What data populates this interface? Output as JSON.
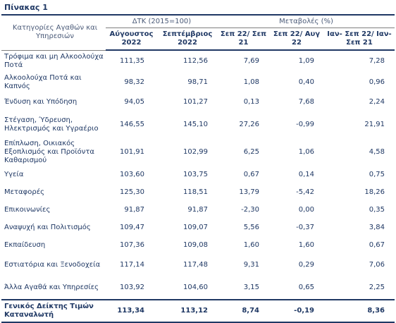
{
  "title": "Πίνακας 1",
  "headers": {
    "category": "Κατηγορίες Αγαθών και Υπηρεσιών",
    "index_group": "ΔΤΚ (2015=100)",
    "change_group": "Μεταβολές (%)",
    "col1": "Αύγουστος 2022",
    "col2": "Σεπτέμβριος 2022",
    "col3": "Σεπ 22/ Σεπ 21",
    "col4": "Σεπ 22/ Αυγ 22",
    "col5": "Ιαν- Σεπ 22/ Ιαν- Σεπ 21"
  },
  "rows": [
    {
      "label": "Τρόφιμα και μη Αλκοολούχα Ποτά",
      "v1": "111,35",
      "v2": "112,56",
      "v3": "7,69",
      "v4": "1,09",
      "v5": "7,28"
    },
    {
      "label": "Αλκοολούχα Ποτά και Καπνός",
      "v1": "98,32",
      "v2": "98,71",
      "v3": "1,08",
      "v4": "0,40",
      "v5": "0,96"
    },
    {
      "label": "Ένδυση και Υπόδηση",
      "v1": "94,05",
      "v2": "101,27",
      "v3": "0,13",
      "v4": "7,68",
      "v5": "2,24"
    },
    {
      "label": "Στέγαση, Ύδρευση, Ηλεκτρισμός και Υγραέριο",
      "v1": "146,55",
      "v2": "145,10",
      "v3": "27,26",
      "v4": "-0,99",
      "v5": "21,91"
    },
    {
      "label": "Επίπλωση, Οικιακός Εξοπλισμός και Προϊόντα Καθαρισμού",
      "v1": "101,91",
      "v2": "102,99",
      "v3": "6,25",
      "v4": "1,06",
      "v5": "4,58"
    },
    {
      "label": "Υγεία",
      "v1": "103,60",
      "v2": "103,75",
      "v3": "0,67",
      "v4": "0,14",
      "v5": "0,75"
    },
    {
      "label": "Μεταφορές",
      "v1": "125,30",
      "v2": "118,51",
      "v3": "13,79",
      "v4": "-5,42",
      "v5": "18,26"
    },
    {
      "label": "Επικοινωνίες",
      "v1": "91,87",
      "v2": "91,87",
      "v3": "-2,30",
      "v4": "0,00",
      "v5": "0,35"
    },
    {
      "label": "Αναψυχή και Πολιτισμός",
      "v1": "109,47",
      "v2": "109,07",
      "v3": "5,56",
      "v4": "-0,37",
      "v5": "3,84"
    },
    {
      "label": "Εκπαίδευση",
      "v1": "107,36",
      "v2": "109,08",
      "v3": "1,60",
      "v4": "1,60",
      "v5": "0,67"
    },
    {
      "label": "Εστιατόρια και Ξενοδοχεία",
      "v1": "117,14",
      "v2": "117,48",
      "v3": "9,31",
      "v4": "0,29",
      "v5": "7,06"
    },
    {
      "label": "Άλλα Αγαθά και Υπηρεσίες",
      "v1": "103,92",
      "v2": "104,60",
      "v3": "3,15",
      "v4": "0,65",
      "v5": "2,25"
    }
  ],
  "total": {
    "label": "Γενικός Δείκτης Τιμών Καταναλωτή",
    "v1": "113,34",
    "v2": "113,12",
    "v3": "8,74",
    "v4": "-0,19",
    "v5": "8,36"
  }
}
